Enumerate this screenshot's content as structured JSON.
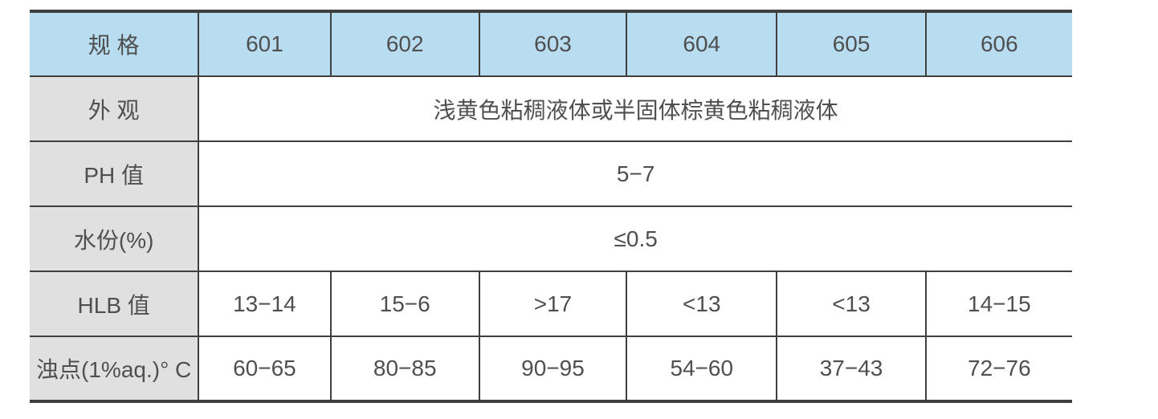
{
  "table": {
    "title": "product-specification-table",
    "colors": {
      "header_bg": "#b8dcf0",
      "label_bg": "#e0e0e0",
      "border_color": "#3f3f3f",
      "text_color": "#4f4f4f"
    },
    "header": {
      "label": "规 格",
      "specs": [
        "601",
        "602",
        "603",
        "604",
        "605",
        "606"
      ]
    },
    "rows": [
      {
        "label": "外 观",
        "merged": true,
        "value": "浅黄色粘稠液体或半固体棕黄色粘稠液体"
      },
      {
        "label": "PH 值",
        "merged": true,
        "value": "5−7"
      },
      {
        "label": "水份(%)",
        "merged": true,
        "value": "≤0.5"
      },
      {
        "label": "HLB 值",
        "merged": false,
        "values": [
          "13−14",
          "15−6",
          ">17",
          "<13",
          "<13",
          "14−15"
        ]
      },
      {
        "label": "浊点(1%aq.)° C",
        "merged": false,
        "values": [
          "60−65",
          "80−85",
          "90−95",
          "54−60",
          "37−43",
          "72−76"
        ]
      }
    ]
  }
}
